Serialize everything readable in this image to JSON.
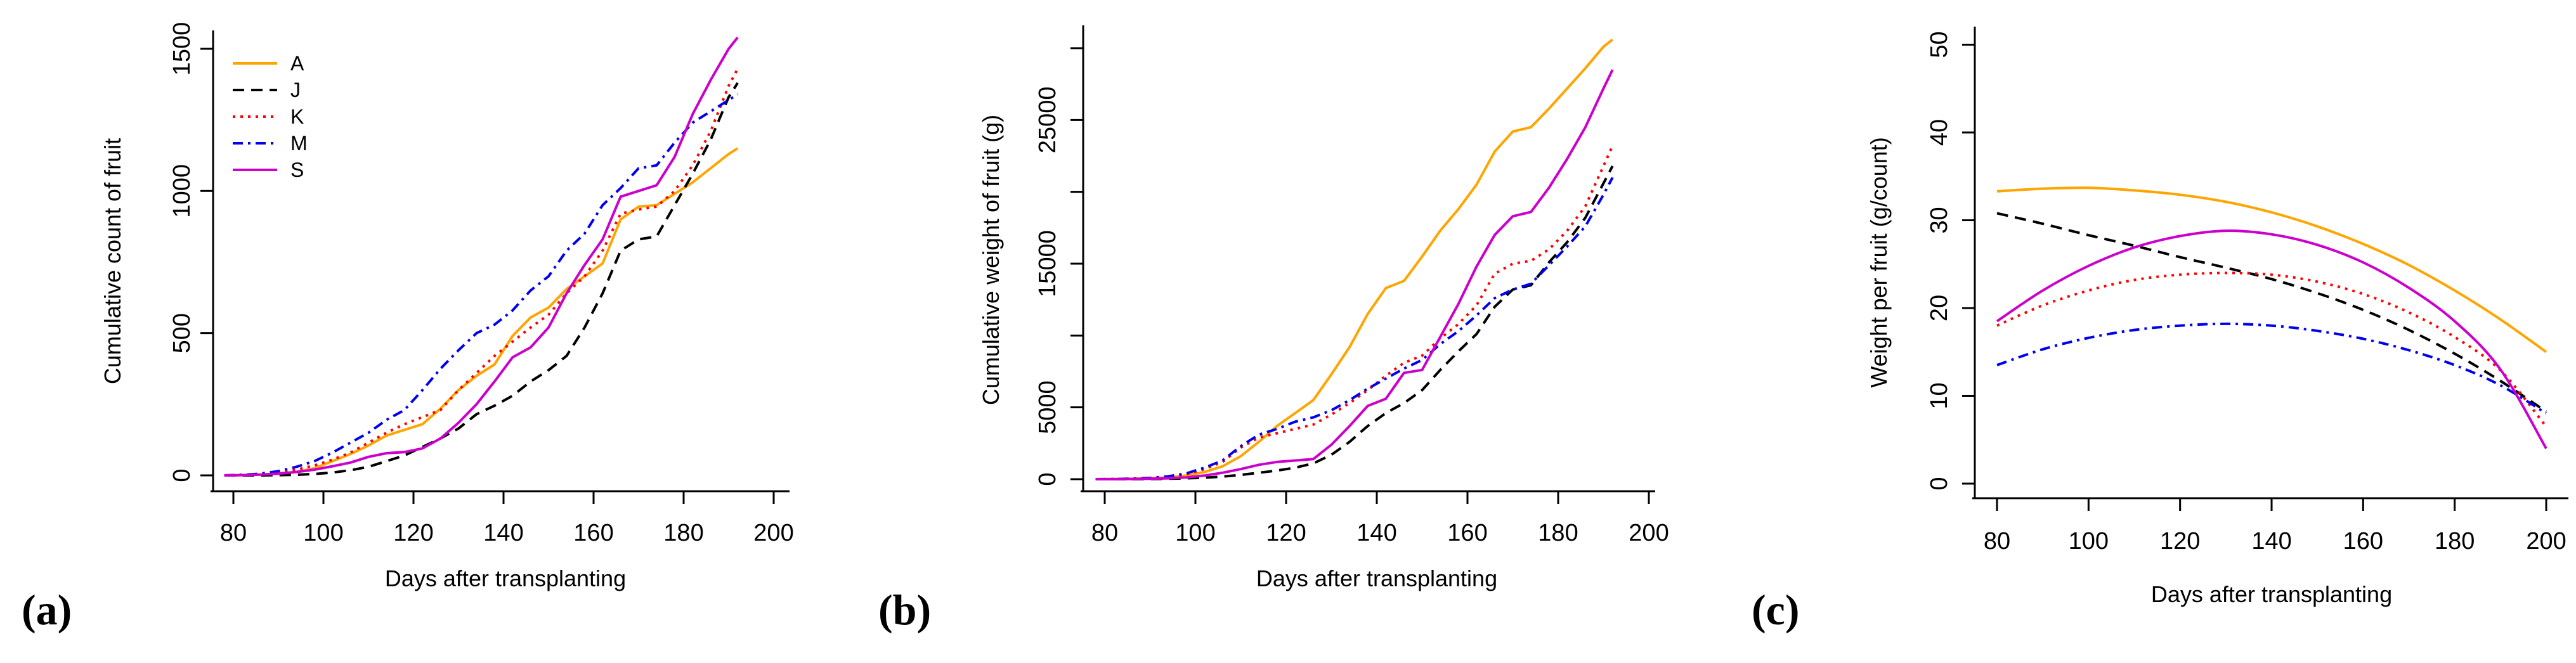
{
  "figure": {
    "background": "#FFFFFF",
    "text_color": "#000000"
  },
  "panels": [
    {
      "letter": "(a)"
    },
    {
      "letter": "(b)"
    },
    {
      "letter": "(c)"
    }
  ],
  "legend": {
    "entries": [
      "A",
      "J",
      "K",
      "M",
      "S"
    ],
    "position": "top-left-panel-a"
  },
  "chart_data": [
    {
      "id": "a",
      "panel_label": "(a)",
      "type": "line",
      "title": "",
      "xlabel": "Days after transplanting",
      "ylabel": "Cumulative count of fruit",
      "xlim": [
        75,
        205
      ],
      "ylim": [
        0,
        1550
      ],
      "grid": false,
      "legend_visible": true,
      "xticks": [
        80,
        100,
        120,
        140,
        160,
        180,
        200
      ],
      "yticks": [
        0,
        500,
        1000,
        1500
      ],
      "ytick_labels": [
        "0",
        "500",
        "1000",
        "1500"
      ],
      "x": [
        78,
        82,
        86,
        90,
        94,
        98,
        102,
        106,
        110,
        114,
        118,
        122,
        126,
        130,
        134,
        138,
        142,
        146,
        150,
        154,
        158,
        162,
        166,
        170,
        174,
        178,
        182,
        186,
        190,
        192
      ],
      "series": [
        {
          "name": "A",
          "color": "#FFA500",
          "line_style": "solid",
          "values": [
            0,
            1,
            3,
            6,
            12,
            25,
            50,
            75,
            105,
            140,
            160,
            180,
            235,
            300,
            350,
            390,
            490,
            555,
            590,
            655,
            700,
            745,
            900,
            945,
            950,
            990,
            1030,
            1080,
            1130,
            1150
          ]
        },
        {
          "name": "J",
          "color": "#000000",
          "line_style": "dashed",
          "values": [
            0,
            0,
            0,
            1,
            2,
            5,
            10,
            18,
            30,
            50,
            70,
            100,
            130,
            165,
            215,
            245,
            280,
            330,
            370,
            420,
            520,
            640,
            790,
            830,
            840,
            950,
            1060,
            1180,
            1330,
            1380
          ]
        },
        {
          "name": "K",
          "color": "#FF0000",
          "line_style": "dotted",
          "values": [
            0,
            2,
            5,
            10,
            20,
            35,
            55,
            80,
            115,
            150,
            180,
            205,
            230,
            300,
            360,
            420,
            470,
            520,
            565,
            640,
            700,
            790,
            920,
            935,
            945,
            1000,
            1090,
            1210,
            1370,
            1430
          ]
        },
        {
          "name": "M",
          "color": "#0000EE",
          "line_style": "dashdot",
          "values": [
            0,
            2,
            6,
            15,
            30,
            50,
            80,
            115,
            150,
            195,
            230,
            300,
            375,
            440,
            500,
            530,
            580,
            650,
            700,
            790,
            850,
            950,
            1010,
            1080,
            1090,
            1170,
            1240,
            1280,
            1320,
            1340
          ]
        },
        {
          "name": "S",
          "color": "#CC00CC",
          "line_style": "solid",
          "values": [
            0,
            1,
            3,
            6,
            12,
            20,
            32,
            45,
            65,
            78,
            82,
            95,
            130,
            185,
            250,
            330,
            415,
            450,
            520,
            640,
            740,
            830,
            980,
            1000,
            1020,
            1120,
            1270,
            1390,
            1500,
            1540
          ]
        }
      ]
    },
    {
      "id": "b",
      "panel_label": "(b)",
      "type": "line",
      "title": "",
      "xlabel": "Days after transplanting",
      "ylabel": "Cumulative weight of fruit (g)",
      "xlim": [
        75,
        205
      ],
      "ylim": [
        0,
        30600
      ],
      "grid": false,
      "legend_visible": false,
      "xticks": [
        80,
        100,
        120,
        140,
        160,
        180,
        200
      ],
      "yticks": [
        0,
        5000,
        10000,
        15000,
        20000,
        25000,
        30000
      ],
      "ytick_labels": [
        "0",
        "5000",
        "",
        "15000",
        "",
        "25000",
        ""
      ],
      "x": [
        78,
        82,
        86,
        90,
        94,
        98,
        102,
        106,
        110,
        114,
        118,
        122,
        126,
        130,
        134,
        138,
        142,
        146,
        150,
        154,
        158,
        162,
        166,
        170,
        174,
        178,
        182,
        186,
        190,
        192
      ],
      "series": [
        {
          "name": "A",
          "color": "#FFA500",
          "line_style": "solid",
          "values": [
            0,
            10,
            30,
            60,
            120,
            250,
            500,
            900,
            1600,
            2600,
            3700,
            4600,
            5500,
            7300,
            9200,
            11500,
            13300,
            13800,
            15500,
            17300,
            18800,
            20500,
            22800,
            24200,
            24500,
            25800,
            27200,
            28600,
            30100,
            30600
          ]
        },
        {
          "name": "J",
          "color": "#000000",
          "line_style": "dashed",
          "values": [
            0,
            0,
            0,
            10,
            30,
            60,
            100,
            180,
            300,
            450,
            600,
            800,
            1100,
            1700,
            2600,
            3700,
            4600,
            5300,
            6200,
            7600,
            8900,
            10100,
            12000,
            13200,
            13500,
            15100,
            16500,
            18200,
            20600,
            21800
          ]
        },
        {
          "name": "K",
          "color": "#FF0000",
          "line_style": "dotted",
          "values": [
            0,
            10,
            30,
            60,
            150,
            350,
            700,
            1200,
            2200,
            2900,
            3200,
            3500,
            3800,
            4500,
            5300,
            6200,
            7200,
            8100,
            8600,
            9800,
            10800,
            12100,
            14300,
            15000,
            15200,
            16000,
            17300,
            19000,
            21800,
            23200
          ]
        },
        {
          "name": "M",
          "color": "#0000EE",
          "line_style": "dashdot",
          "values": [
            0,
            10,
            40,
            90,
            200,
            400,
            800,
            1300,
            2300,
            3100,
            3500,
            4000,
            4300,
            4800,
            5500,
            6300,
            7000,
            7700,
            8300,
            9400,
            10300,
            11400,
            12600,
            13200,
            13600,
            14900,
            16200,
            17600,
            19800,
            21000
          ]
        },
        {
          "name": "S",
          "color": "#CC00CC",
          "line_style": "solid",
          "values": [
            0,
            5,
            15,
            30,
            60,
            120,
            250,
            450,
            700,
            1000,
            1200,
            1300,
            1400,
            2400,
            3700,
            5100,
            5600,
            7400,
            7600,
            9900,
            12200,
            14800,
            17000,
            18300,
            18600,
            20300,
            22300,
            24500,
            27200,
            28500
          ]
        }
      ]
    },
    {
      "id": "c",
      "panel_label": "(c)",
      "type": "line",
      "title": "",
      "xlabel": "Days after transplanting",
      "ylabel": "Weight per fruit (g/count)",
      "xlim": [
        75,
        205
      ],
      "ylim": [
        0,
        50
      ],
      "grid": false,
      "legend_visible": false,
      "smooth": true,
      "xticks": [
        80,
        100,
        120,
        140,
        160,
        180,
        200
      ],
      "yticks": [
        0,
        10,
        20,
        30,
        40,
        50
      ],
      "ytick_labels": [
        "0",
        "10",
        "20",
        "30",
        "40",
        "50"
      ],
      "x": [
        80,
        90,
        100,
        110,
        120,
        130,
        140,
        150,
        160,
        170,
        180,
        190,
        200
      ],
      "series": [
        {
          "name": "A",
          "color": "#FFA500",
          "line_style": "solid",
          "values": [
            33.3,
            33.6,
            33.7,
            33.4,
            32.9,
            32.1,
            30.9,
            29.3,
            27.3,
            24.9,
            22.0,
            18.7,
            15.0
          ]
        },
        {
          "name": "J",
          "color": "#000000",
          "line_style": "dashed",
          "values": [
            30.8,
            29.6,
            28.3,
            27.1,
            25.8,
            24.6,
            23.3,
            21.7,
            19.8,
            17.5,
            14.8,
            11.7,
            8.2
          ]
        },
        {
          "name": "K",
          "color": "#FF0000",
          "line_style": "dotted",
          "values": [
            18.0,
            20.3,
            22.0,
            23.2,
            23.8,
            24.0,
            23.8,
            23.0,
            21.6,
            19.5,
            16.7,
            12.9,
            6.5
          ]
        },
        {
          "name": "M",
          "color": "#0000EE",
          "line_style": "dashdot",
          "values": [
            13.5,
            15.3,
            16.6,
            17.5,
            18.0,
            18.2,
            18.0,
            17.4,
            16.5,
            15.2,
            13.5,
            11.2,
            8.0
          ]
        },
        {
          "name": "S",
          "color": "#CC00CC",
          "line_style": "solid",
          "values": [
            18.5,
            22.0,
            24.8,
            26.9,
            28.2,
            28.8,
            28.4,
            27.2,
            25.2,
            22.3,
            18.5,
            13.0,
            4.0
          ]
        }
      ]
    }
  ]
}
